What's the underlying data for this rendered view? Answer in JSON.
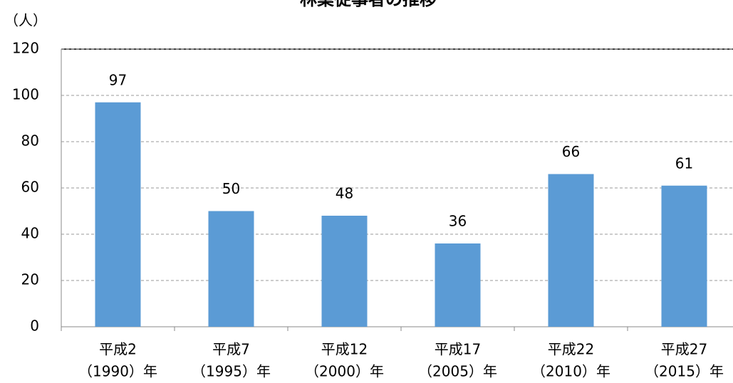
{
  "chart_data": {
    "type": "bar",
    "title": "林業従事者の推移",
    "y_label": "（人）",
    "categories": [
      [
        "平成2",
        "（1990）年"
      ],
      [
        "平成7",
        "（1995）年"
      ],
      [
        "平成12",
        "（2000）年"
      ],
      [
        "平成17",
        "（2005）年"
      ],
      [
        "平成22",
        "（2010）年"
      ],
      [
        "平成27",
        "（2015）年"
      ]
    ],
    "values": [
      97,
      50,
      48,
      36,
      66,
      61
    ],
    "color": "#5b9bd5",
    "ylim": [
      0,
      120
    ],
    "yticks": [
      0,
      20,
      40,
      60,
      80,
      100,
      120
    ],
    "grid": true
  }
}
